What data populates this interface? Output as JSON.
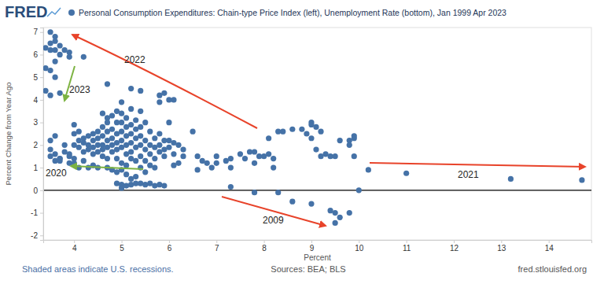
{
  "chart_data": {
    "type": "scatter",
    "logo": "FRED",
    "title": "Personal Consumption Expenditures: Chain-type Price Index (left), Unemployment Rate (bottom), Jan 1999 Apr 2023",
    "ylabel": "Percent Change from Year Ago",
    "xlabel": "Percent",
    "footer_note": "Shaded areas indicate U.S. recessions.",
    "source": "Sources: BEA; BLS",
    "url": "fred.stlouisfed.org",
    "annotations": [
      "2022",
      "2023",
      "2020",
      "2009",
      "2021"
    ],
    "color": "#4572a7",
    "grid": false,
    "xlim": [
      3.35,
      14.9
    ],
    "ylim": [
      -2.2,
      7.2
    ],
    "xticks": [
      4,
      5,
      6,
      7,
      8,
      9,
      10,
      11,
      12,
      13,
      14
    ],
    "yticks": [
      -2,
      -1,
      0,
      1,
      2,
      3,
      4,
      5,
      6,
      7
    ],
    "x": [
      3.5,
      3.6,
      3.6,
      3.5,
      3.7,
      3.4,
      3.6,
      3.5,
      3.7,
      3.9,
      3.8,
      4.2,
      3.9,
      3.6,
      3.4,
      3.5,
      3.6,
      3.4,
      3.5,
      3.7,
      4.7,
      5.2,
      5.4,
      5.8,
      5.9,
      6.0,
      6.1,
      5.8,
      3.5,
      3.6,
      3.5,
      3.7,
      3.6,
      3.5,
      3.8,
      3.9,
      3.7,
      3.9,
      3.8,
      4.0,
      4.0,
      3.9,
      3.6,
      3.7,
      4.0,
      4.0,
      4.1,
      4.1,
      4.1,
      4.2,
      4.2,
      4.2,
      4.3,
      4.3,
      4.3,
      4.3,
      4.4,
      4.4,
      4.4,
      4.4,
      4.4,
      4.5,
      4.5,
      4.5,
      4.5,
      4.5,
      4.6,
      4.6,
      4.6,
      4.6,
      4.6,
      4.7,
      4.7,
      4.7,
      4.7,
      4.7,
      4.7,
      4.8,
      4.8,
      4.8,
      4.8,
      4.8,
      4.8,
      4.9,
      4.9,
      4.9,
      4.9,
      4.9,
      4.9,
      4.9,
      4.1,
      4.2,
      4.0,
      4.6,
      4.7,
      5.0,
      5.0,
      5.0,
      5.0,
      5.0,
      5.0,
      5.0,
      5.0,
      5.1,
      5.1,
      5.1,
      5.1,
      5.1,
      5.1,
      5.1,
      5.2,
      5.2,
      5.2,
      5.2,
      5.2,
      5.2,
      5.3,
      5.3,
      5.3,
      5.3,
      5.3,
      5.4,
      5.4,
      5.4,
      5.4,
      5.4,
      5.4,
      5.5,
      5.5,
      5.5,
      5.5,
      5.5,
      5.6,
      5.6,
      5.6,
      5.6,
      5.7,
      5.7,
      5.7,
      5.7,
      5.8,
      5.8,
      5.8,
      5.9,
      5.9,
      5.9,
      5.3,
      5.2,
      4.9,
      5.0,
      5.0,
      5.1,
      5.2,
      5.3,
      5.4,
      5.5,
      5.6,
      5.7,
      5.8,
      5.9,
      6.0,
      6.0,
      6.1,
      6.1,
      6.1,
      6.2,
      6.2,
      6.3,
      6.3,
      6.5,
      6.0,
      6.6,
      6.6,
      6.7,
      6.8,
      6.9,
      7.0,
      7.0,
      7.2,
      7.3,
      7.3,
      7.3,
      7.5,
      7.6,
      7.7,
      7.8,
      7.8,
      7.8,
      7.9,
      8.0,
      8.1,
      8.1,
      8.2,
      8.2,
      8.3,
      8.3,
      8.4,
      8.6,
      8.6,
      8.8,
      8.9,
      9.0,
      9.0,
      9.0,
      9.0,
      9.1,
      9.1,
      9.2,
      9.2,
      9.3,
      9.4,
      9.4,
      9.5,
      9.5,
      9.5,
      9.6,
      9.6,
      9.8,
      9.8,
      9.8,
      9.9,
      9.9,
      9.9,
      10.0,
      10.2,
      11.0,
      13.2,
      14.7
    ],
    "values": [
      7.0,
      6.8,
      6.6,
      6.5,
      6.4,
      6.3,
      6.2,
      6.2,
      6.0,
      6.1,
      6.2,
      5.9,
      5.9,
      5.7,
      5.4,
      5.3,
      5.0,
      4.4,
      4.2,
      4.3,
      4.7,
      4.5,
      4.4,
      4.2,
      4.3,
      4.0,
      4.0,
      3.9,
      1.8,
      1.6,
      1.5,
      1.4,
      2.4,
      2.2,
      1.7,
      1.5,
      1.4,
      1.6,
      2.0,
      2.0,
      1.4,
      1.2,
      1.3,
      1.3,
      2.5,
      2.9,
      2.6,
      2.2,
      1.9,
      2.3,
      2.1,
      1.7,
      2.4,
      2.0,
      1.8,
      1.0,
      2.5,
      2.2,
      1.9,
      1.6,
      1.1,
      2.6,
      2.3,
      2.0,
      1.7,
      1.0,
      2.8,
      2.4,
      2.0,
      1.8,
      1.5,
      3.0,
      2.6,
      2.2,
      1.9,
      1.4,
      1.0,
      3.3,
      2.7,
      2.3,
      2.0,
      1.7,
      0.9,
      3.5,
      3.0,
      2.5,
      2.1,
      1.8,
      1.4,
      0.8,
      1.0,
      1.3,
      1.2,
      3.4,
      3.2,
      3.9,
      3.4,
      3.0,
      2.6,
      2.2,
      1.9,
      1.2,
      0.9,
      3.2,
      2.8,
      2.4,
      2.0,
      1.6,
      1.1,
      0.7,
      3.6,
      2.9,
      2.5,
      2.1,
      1.7,
      1.4,
      3.1,
      2.7,
      2.3,
      1.9,
      1.3,
      3.5,
      2.8,
      2.4,
      2.0,
      1.5,
      1.0,
      3.0,
      2.2,
      1.8,
      1.3,
      0.8,
      2.6,
      2.0,
      1.6,
      1.1,
      2.3,
      1.9,
      1.4,
      1.0,
      2.5,
      2.0,
      1.7,
      2.2,
      1.8,
      1.5,
      0.6,
      0.5,
      0.3,
      0.25,
      0.1,
      0.2,
      0.25,
      0.3,
      0.3,
      0.25,
      0.3,
      0.2,
      0.25,
      0.2,
      2.2,
      1.9,
      2.1,
      1.6,
      1.1,
      2.0,
      1.2,
      1.8,
      1.5,
      2.6,
      3.0,
      1.5,
      0.9,
      1.3,
      1.2,
      1.0,
      1.5,
      1.2,
      1.3,
      1.0,
      0.15,
      1.4,
      1.6,
      1.4,
      1.7,
      1.7,
      1.2,
      -0.1,
      1.5,
      1.5,
      1.6,
      2.3,
      1.4,
      1.0,
      2.6,
      -0.1,
      2.6,
      2.7,
      -0.5,
      2.7,
      2.5,
      3.0,
      2.9,
      2.3,
      -0.6,
      2.8,
      1.8,
      2.6,
      1.5,
      1.6,
      1.5,
      -0.9,
      1.5,
      -1.0,
      -1.45,
      -1.2,
      2.2,
      2.2,
      2.0,
      -1.0,
      2.4,
      2.3,
      1.5,
      0.0,
      0.9,
      0.75,
      0.5,
      0.45
    ]
  }
}
